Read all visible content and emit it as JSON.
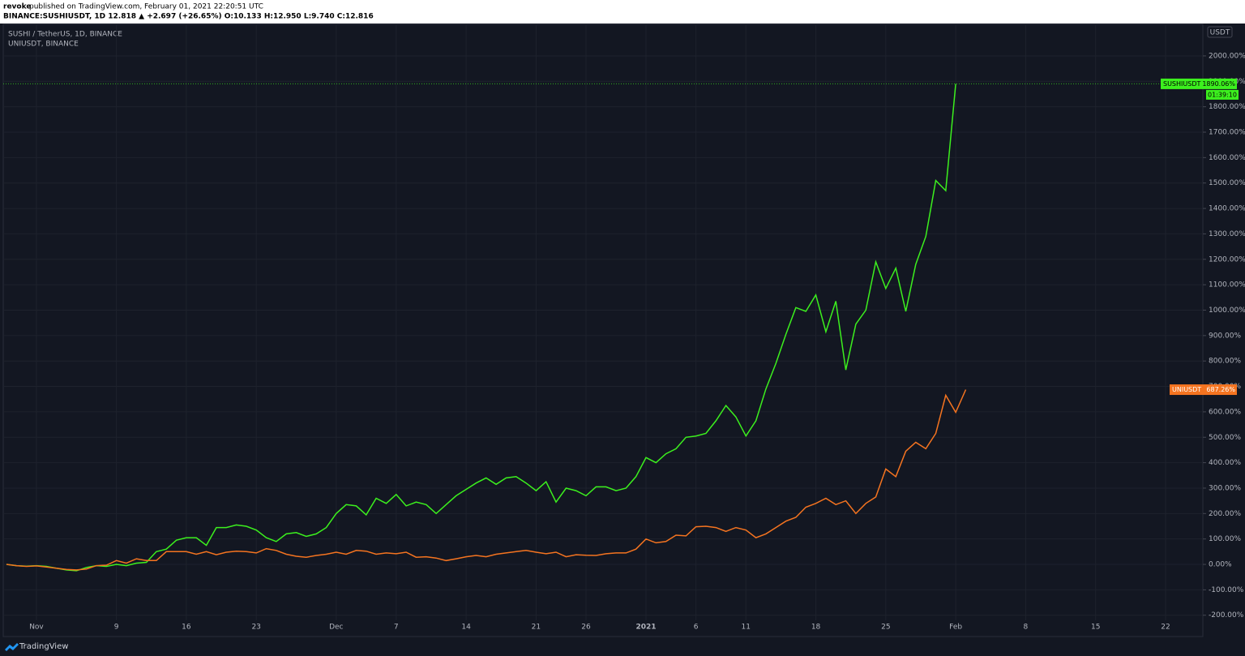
{
  "chart_data": {
    "type": "line",
    "publisher": "revoke",
    "published": "published on TradingView.com, February 01, 2021 22:20:51 UTC",
    "symbol_info": "BINANCE:SUSHIUSDT, 1D 12.818 ▲ +2.697 (+26.65%) O:10.133 H:12.950 L:9.740 C:12.816",
    "scale_label": "USDT",
    "brand": "TradingView",
    "countdown": "01:39:10",
    "categories": [
      null,
      null,
      null,
      "Nov",
      null,
      null,
      null,
      null,
      null,
      null,
      null,
      "9",
      null,
      null,
      null,
      null,
      null,
      null,
      "16",
      null,
      null,
      null,
      null,
      null,
      null,
      "23",
      null,
      null,
      null,
      null,
      null,
      null,
      null,
      "Dec",
      null,
      null,
      null,
      null,
      null,
      "7",
      null,
      null,
      null,
      null,
      null,
      null,
      "14",
      null,
      null,
      null,
      null,
      null,
      null,
      "21",
      null,
      null,
      null,
      null,
      "26",
      null,
      null,
      null,
      null,
      null,
      "2021",
      null,
      null,
      null,
      null,
      "6",
      null,
      null,
      null,
      null,
      "11",
      null,
      null,
      null,
      null,
      null,
      null,
      "18",
      null,
      null,
      null,
      null,
      null,
      null,
      "25",
      null,
      null,
      null,
      null,
      null,
      null,
      "Feb",
      null,
      null,
      null,
      null,
      null,
      null,
      "8",
      null,
      null,
      null,
      null,
      null,
      null,
      "15",
      null,
      null,
      null,
      null,
      null,
      null,
      "22",
      null,
      null,
      null
    ],
    "series": [
      {
        "name": "SUSHI / TetherUS, 1D, BINANCE",
        "tag": "SUSHIUSDT",
        "color": "#3cf01e",
        "values": [
          0,
          -5,
          -7,
          -5,
          -8,
          -15,
          -22,
          -25,
          -12,
          -5,
          -8,
          0,
          -5,
          5,
          8,
          50,
          60,
          95,
          105,
          105,
          75,
          145,
          145,
          155,
          150,
          135,
          105,
          90,
          120,
          125,
          110,
          120,
          145,
          200,
          235,
          230,
          195,
          260,
          240,
          275,
          230,
          245,
          235,
          200,
          235,
          270,
          295,
          320,
          340,
          315,
          340,
          345,
          320,
          290,
          325,
          245,
          300,
          290,
          270,
          305,
          305,
          290,
          300,
          345,
          420,
          400,
          435,
          455,
          500,
          505,
          515,
          565,
          625,
          580,
          505,
          565,
          690,
          790,
          905,
          1010,
          995,
          1060,
          915,
          1035,
          765,
          945,
          1000,
          1190,
          1085,
          1165,
          995,
          1180,
          1290,
          1510,
          1470,
          1890.06,
          null,
          null,
          null,
          null,
          null,
          null,
          null,
          null,
          null,
          null,
          null,
          null,
          null,
          null,
          null,
          null,
          null,
          null,
          null,
          null,
          null,
          null,
          null,
          null
        ],
        "value_labels": [
          null,
          null,
          null,
          null,
          null,
          null,
          null,
          null,
          null,
          null,
          null,
          null,
          null,
          null,
          null,
          null,
          null,
          null,
          null,
          null,
          null,
          null,
          null,
          null,
          null,
          null,
          null,
          null,
          null,
          null,
          null,
          null,
          null,
          null,
          null,
          null,
          null,
          null,
          null,
          null,
          null,
          null,
          null,
          null,
          null,
          null,
          null,
          null,
          null,
          null,
          null,
          null,
          null,
          null,
          null,
          null,
          null,
          null,
          null,
          null,
          null,
          null,
          null,
          null,
          null,
          null,
          null,
          null,
          null,
          null,
          null,
          null,
          null,
          null,
          null,
          null,
          null,
          null,
          null,
          null,
          null,
          null,
          null,
          null,
          null,
          null,
          null,
          null,
          null,
          null,
          null,
          null,
          null,
          null,
          null,
          "1890.06%",
          null,
          null,
          null,
          null,
          null,
          null,
          null,
          null,
          null,
          null,
          null,
          null,
          null,
          null,
          null,
          null,
          null,
          null,
          null,
          null,
          null,
          null,
          null,
          null
        ]
      },
      {
        "name": "UNIUSDT, BINANCE",
        "tag": "UNIUSDT",
        "color": "#f57420",
        "values": [
          0,
          -5,
          -8,
          -6,
          -10,
          -15,
          -20,
          -22,
          -18,
          -5,
          -3,
          15,
          5,
          22,
          15,
          15,
          50,
          50,
          50,
          40,
          50,
          38,
          48,
          52,
          50,
          45,
          62,
          55,
          40,
          32,
          28,
          35,
          40,
          48,
          40,
          55,
          52,
          40,
          45,
          42,
          48,
          28,
          30,
          25,
          15,
          22,
          30,
          35,
          30,
          40,
          45,
          50,
          55,
          48,
          42,
          48,
          30,
          38,
          36,
          35,
          42,
          45,
          45,
          60,
          100,
          85,
          90,
          115,
          112,
          148,
          150,
          145,
          130,
          145,
          135,
          105,
          120,
          145,
          170,
          185,
          225,
          240,
          260,
          235,
          250,
          200,
          240,
          265,
          375,
          345,
          445,
          480,
          455,
          515,
          665,
          598,
          687.26,
          null,
          null,
          null,
          null,
          null,
          null,
          null,
          null,
          null,
          null,
          null,
          null,
          null,
          null,
          null,
          null,
          null,
          null,
          null,
          null,
          null,
          null,
          null
        ],
        "value_labels": [
          null,
          null,
          null,
          null,
          null,
          null,
          null,
          null,
          null,
          null,
          null,
          null,
          null,
          null,
          null,
          null,
          null,
          null,
          null,
          null,
          null,
          null,
          null,
          null,
          null,
          null,
          null,
          null,
          null,
          null,
          null,
          null,
          null,
          null,
          null,
          null,
          null,
          null,
          null,
          null,
          null,
          null,
          null,
          null,
          null,
          null,
          null,
          null,
          null,
          null,
          null,
          null,
          null,
          null,
          null,
          null,
          null,
          null,
          null,
          null,
          null,
          null,
          null,
          null,
          null,
          null,
          null,
          null,
          null,
          null,
          null,
          null,
          null,
          null,
          null,
          null,
          null,
          null,
          null,
          null,
          null,
          null,
          null,
          null,
          null,
          null,
          null,
          null,
          null,
          null,
          null,
          null,
          null,
          null,
          null,
          null,
          "687.26%",
          null,
          null,
          null,
          null,
          null,
          null,
          null,
          null,
          null,
          null,
          null,
          null,
          null,
          null,
          null,
          null,
          null,
          null,
          null,
          null,
          null,
          null,
          null
        ]
      }
    ],
    "ylim": [
      -220,
      2121
    ],
    "yticks": [
      {
        "value": -200,
        "label": "-200.00%"
      },
      {
        "value": -100,
        "label": "-100.00%"
      },
      {
        "value": 0,
        "label": "0.00%"
      },
      {
        "value": 100,
        "label": "100.00%"
      },
      {
        "value": 200,
        "label": "200.00%"
      },
      {
        "value": 300,
        "label": "300.00%"
      },
      {
        "value": 400,
        "label": "400.00%"
      },
      {
        "value": 500,
        "label": "500.00%"
      },
      {
        "value": 600,
        "label": "600.00%"
      },
      {
        "value": 700,
        "label": "700.00%"
      },
      {
        "value": 800,
        "label": "800.00%"
      },
      {
        "value": 900,
        "label": "900.00%"
      },
      {
        "value": 1000,
        "label": "1000.00%"
      },
      {
        "value": 1100,
        "label": "1100.00%"
      },
      {
        "value": 1200,
        "label": "1200.00%"
      },
      {
        "value": 1300,
        "label": "1300.00%"
      },
      {
        "value": 1400,
        "label": "1400.00%"
      },
      {
        "value": 1500,
        "label": "1500.00%"
      },
      {
        "value": 1600,
        "label": "1600.00%"
      },
      {
        "value": 1700,
        "label": "1700.00%"
      },
      {
        "value": 1800,
        "label": "1800.00%"
      },
      {
        "value": 1900,
        "label": "1900.00%"
      },
      {
        "value": 2000,
        "label": "2000.00%"
      }
    ],
    "grid": true
  }
}
